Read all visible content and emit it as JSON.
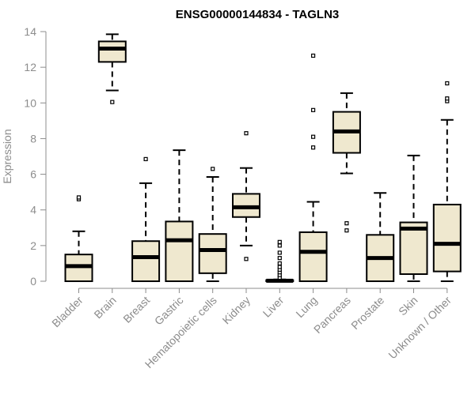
{
  "chart_data": {
    "type": "boxplot",
    "title": "ENSG00000144834 - TAGLN3",
    "xlabel": "",
    "ylabel": "Expression",
    "ylim": [
      0,
      14
    ],
    "yticks": [
      0,
      2,
      4,
      6,
      8,
      10,
      12,
      14
    ],
    "box_color": "#efe8cf",
    "categories": [
      "Bladder",
      "Brain",
      "Breast",
      "Gastric",
      "Hematopoietic cells",
      "Kidney",
      "Liver",
      "Lung",
      "Pancreas",
      "Prostate",
      "Skin",
      "Unknown / Other"
    ],
    "boxes": [
      {
        "min": 0,
        "q1": 0,
        "median": 0.85,
        "q3": 1.5,
        "max": 2.8,
        "outliers": [
          4.6,
          4.7
        ]
      },
      {
        "min": 10.7,
        "q1": 12.3,
        "median": 13.05,
        "q3": 13.45,
        "max": 13.85,
        "outliers": [
          10.05
        ]
      },
      {
        "min": 0,
        "q1": 0,
        "median": 1.35,
        "q3": 2.25,
        "max": 5.5,
        "outliers": [
          6.85
        ]
      },
      {
        "min": 0,
        "q1": 0,
        "median": 2.3,
        "q3": 3.35,
        "max": 7.35,
        "outliers": []
      },
      {
        "min": 0,
        "q1": 0.45,
        "median": 1.75,
        "q3": 2.65,
        "max": 5.85,
        "outliers": [
          6.3
        ]
      },
      {
        "min": 2.0,
        "q1": 3.6,
        "median": 4.15,
        "q3": 4.9,
        "max": 6.35,
        "outliers": [
          8.3,
          1.25
        ]
      },
      {
        "min": 0,
        "q1": 0,
        "median": 0.03,
        "q3": 0.06,
        "max": 0.1,
        "outliers": [
          0.2,
          0.35,
          0.5,
          0.65,
          0.8,
          1.0,
          1.3,
          1.6,
          2.0,
          2.2
        ]
      },
      {
        "min": 0,
        "q1": 0,
        "median": 1.65,
        "q3": 2.75,
        "max": 4.45,
        "outliers": [
          7.5,
          8.1,
          9.6,
          12.65
        ]
      },
      {
        "min": 6.05,
        "q1": 7.2,
        "median": 8.4,
        "q3": 9.5,
        "max": 10.55,
        "outliers": [
          2.85,
          3.25
        ]
      },
      {
        "min": 0,
        "q1": 0,
        "median": 1.3,
        "q3": 2.6,
        "max": 4.95,
        "outliers": []
      },
      {
        "min": 0,
        "q1": 0.4,
        "median": 2.95,
        "q3": 3.3,
        "max": 7.05,
        "outliers": []
      },
      {
        "min": 0,
        "q1": 0.55,
        "median": 2.1,
        "q3": 4.3,
        "max": 9.05,
        "outliers": [
          10.1,
          10.25,
          11.1
        ]
      }
    ]
  }
}
